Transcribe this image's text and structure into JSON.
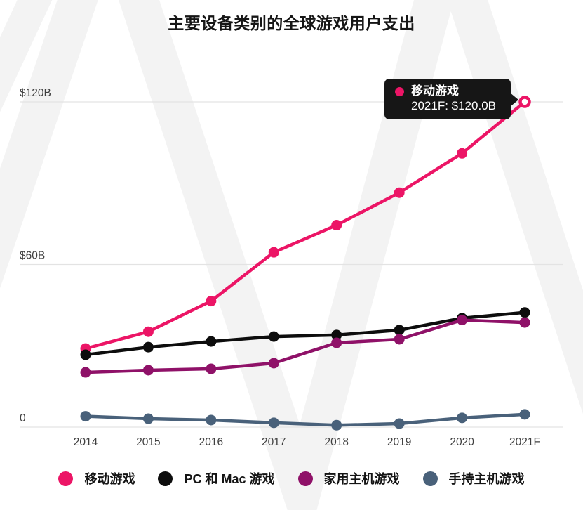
{
  "title": "主要设备类别的全球游戏用户支出",
  "tooltip": {
    "series_label": "移动游戏",
    "value_label": "2021F: $120.0B",
    "dot_color": "#EC1566",
    "bg_color": "#161616"
  },
  "legend": {
    "items": [
      {
        "label": "移动游戏",
        "color": "#EC1566"
      },
      {
        "label": "PC 和 Mac 游戏",
        "color": "#0D0D0D"
      },
      {
        "label": "家用主机游戏",
        "color": "#8F1168"
      },
      {
        "label": "手持主机游戏",
        "color": "#49617A"
      }
    ]
  },
  "chart_data": {
    "type": "line",
    "title": "主要设备类别的全球游戏用户支出",
    "categories": [
      "2014",
      "2015",
      "2016",
      "2017",
      "2018",
      "2019",
      "2020",
      "2021F"
    ],
    "series": [
      {
        "name": "移动游戏",
        "color": "#EC1566",
        "values": [
          29.0,
          35.2,
          46.5,
          64.5,
          74.5,
          86.5,
          101.0,
          120.0
        ],
        "last_point_hollow": true
      },
      {
        "name": "PC 和 Mac 游戏",
        "color": "#0D0D0D",
        "values": [
          26.7,
          29.5,
          31.6,
          33.4,
          34.0,
          35.8,
          40.2,
          42.3
        ],
        "last_point_hollow": false
      },
      {
        "name": "家用主机游戏",
        "color": "#8F1168",
        "values": [
          20.2,
          21.0,
          21.5,
          23.6,
          31.1,
          32.4,
          39.5,
          38.6
        ],
        "last_point_hollow": false
      },
      {
        "name": "手持主机游戏",
        "color": "#49617A",
        "values": [
          4.0,
          3.1,
          2.6,
          1.6,
          0.7,
          1.3,
          3.4,
          4.7
        ],
        "last_point_hollow": false
      }
    ],
    "unit": "$B",
    "xlabel": "",
    "ylabel": "",
    "ylim": [
      0,
      120
    ],
    "ytick_values": [
      120,
      60,
      0
    ],
    "ytick_labels": [
      "$120B",
      "$60B",
      "0"
    ],
    "grid": "horizontal",
    "legend_position": "bottom",
    "annotation": {
      "target_series": "移动游戏",
      "target_category": "2021F",
      "text": "2021F: $120.0B"
    }
  },
  "colors": {
    "grid": "#E3E3E3",
    "tick_text": "#3F3F3F",
    "watermark": "#F3F3F3",
    "background": "#FFFFFF"
  }
}
